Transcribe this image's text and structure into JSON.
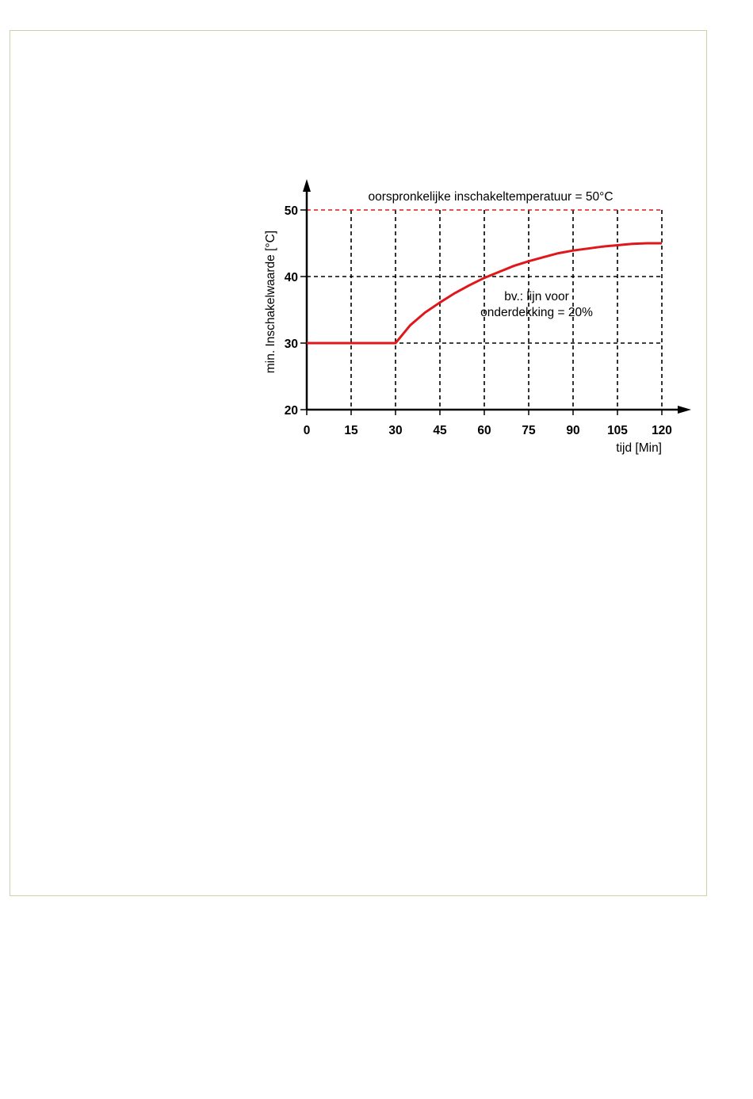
{
  "chart_data": {
    "type": "line",
    "title": "",
    "xlabel": "tijd [Min]",
    "ylabel": "min. Inschakelwaarde [°C]",
    "xlim": [
      0,
      120
    ],
    "ylim": [
      20,
      50
    ],
    "x_ticks": [
      0,
      15,
      30,
      45,
      60,
      75,
      90,
      105,
      120
    ],
    "y_ticks": [
      20,
      30,
      40,
      50
    ],
    "grid": true,
    "reference_line": {
      "y": 50,
      "label": "oorspronkelijke inschakeltemperatuur = 50°C",
      "color": "#e0161b"
    },
    "annotation": {
      "lines": [
        "bv.: lijn voor",
        "onderdekking = 20%"
      ],
      "x": 77,
      "y": 37
    },
    "series": [
      {
        "color": "#e0161b",
        "x": [
          0,
          15,
          30,
          35,
          40,
          45,
          50,
          55,
          60,
          65,
          70,
          75,
          80,
          85,
          90,
          95,
          100,
          105,
          110,
          115,
          120
        ],
        "y": [
          30,
          30,
          30,
          32.7,
          34.6,
          36.1,
          37.5,
          38.7,
          39.8,
          40.7,
          41.6,
          42.3,
          42.9,
          43.5,
          43.9,
          44.2,
          44.5,
          44.7,
          44.9,
          45.0,
          45.0
        ]
      }
    ]
  }
}
